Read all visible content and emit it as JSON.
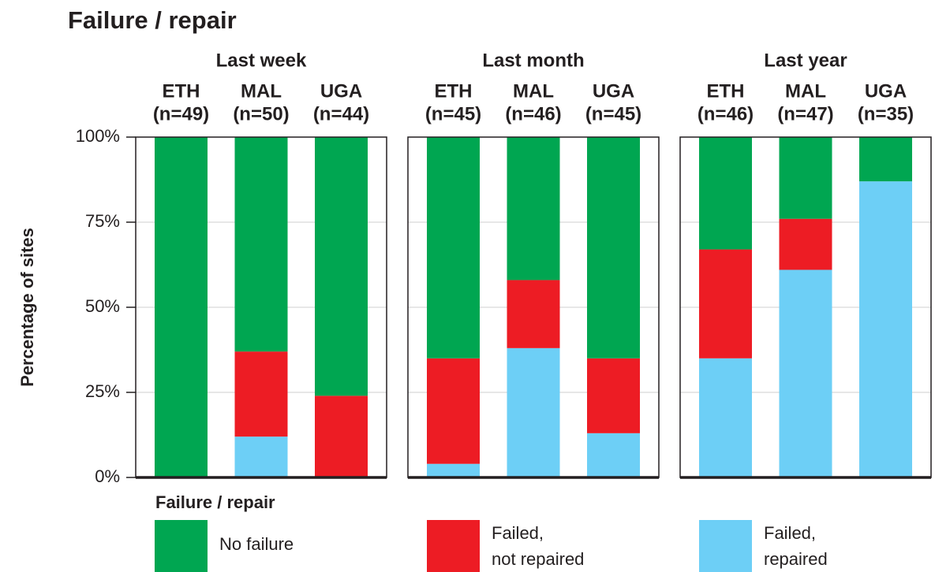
{
  "chart_data": {
    "type": "bar",
    "stacked": true,
    "title": "Failure / repair",
    "y_label": "Percentage of sites",
    "legend_title": "Failure / repair",
    "ylim": [
      0,
      100
    ],
    "yticks": [
      {
        "value": 0,
        "label": "0%"
      },
      {
        "value": 25,
        "label": "25%"
      },
      {
        "value": 50,
        "label": "50%"
      },
      {
        "value": 75,
        "label": "75%"
      },
      {
        "value": 100,
        "label": "100%"
      }
    ],
    "grid": true,
    "panels": [
      {
        "title": "Last week",
        "categories": [
          [
            "ETH",
            "(n=49)"
          ],
          [
            "MAL",
            "(n=50)"
          ],
          [
            "UGA",
            "(n=44)"
          ]
        ]
      },
      {
        "title": "Last month",
        "categories": [
          [
            "ETH",
            "(n=45)"
          ],
          [
            "MAL",
            "(n=46)"
          ],
          [
            "UGA",
            "(n=45)"
          ]
        ]
      },
      {
        "title": "Last year",
        "categories": [
          [
            "ETH",
            "(n=46)"
          ],
          [
            "MAL",
            "(n=47)"
          ],
          [
            "UGA",
            "(n=35)"
          ]
        ]
      }
    ],
    "series": [
      {
        "name": [
          "Failed,",
          "repaired"
        ],
        "color": "#6dcff6",
        "values": [
          [
            0,
            12,
            0
          ],
          [
            4,
            38,
            13
          ],
          [
            35,
            61,
            87
          ]
        ]
      },
      {
        "name": [
          "Failed,",
          "not repaired"
        ],
        "color": "#ed1c24",
        "values": [
          [
            0,
            25,
            24
          ],
          [
            31,
            20,
            22
          ],
          [
            32,
            15,
            0
          ]
        ]
      },
      {
        "name": [
          "No failure"
        ],
        "color": "#00a651",
        "values": [
          [
            100,
            63,
            76
          ],
          [
            65,
            42,
            65
          ],
          [
            33,
            24,
            13
          ]
        ]
      }
    ]
  }
}
